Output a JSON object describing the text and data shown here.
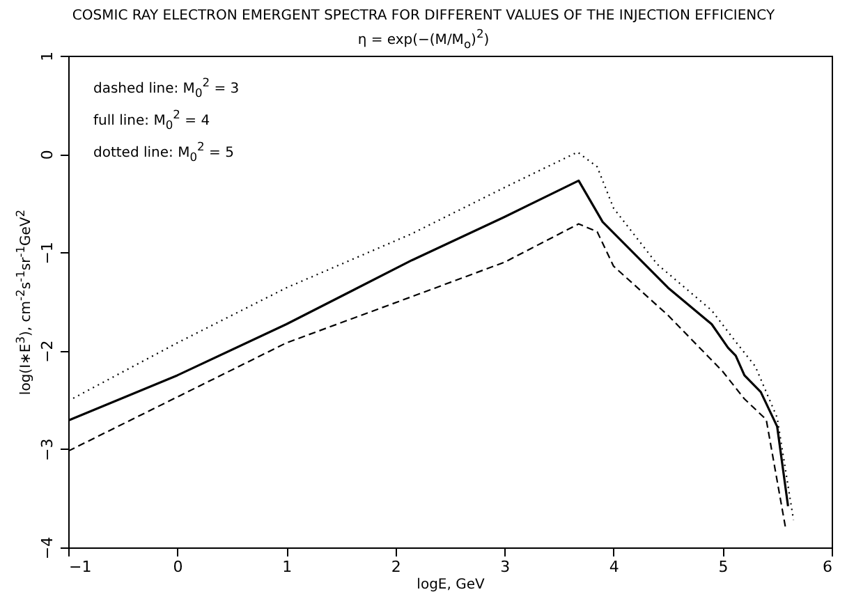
{
  "chart_data": {
    "type": "line",
    "title": "COSMIC RAY ELECTRON EMERGENT SPECTRA FOR DIFFERENT VALUES OF THE INJECTION EFFICIENCY",
    "subtitle": "η = exp(−(M/M$_{o}$)$^{2}$)",
    "xlabel": "logE, GeV",
    "ylabel": "log(I∗E$^{3}$), cm$^{-2}$s$^{-1}$sr$^{-1}$GeV$^{2}$",
    "annotations": [
      "dashed line: M$_{0}$$^{2}$ = 3",
      "full line: M$_{0}$$^{2}$ = 4",
      "dotted line: M$_{0}$$^{2}$ = 5"
    ],
    "xlim": [
      -1,
      6
    ],
    "xticks": [
      -1,
      0,
      1,
      2,
      3,
      4,
      5,
      6
    ],
    "ylim": [
      -4,
      1
    ],
    "yticks": [
      -4,
      -3,
      -2,
      -1,
      0,
      1
    ],
    "grid": false,
    "series": [
      {
        "color": "#000000",
        "line_style": "dashed",
        "x": [
          -1,
          0,
          1,
          2.15,
          3,
          3.68,
          3.85,
          4.0,
          4.5,
          5.0,
          5.2,
          5.4,
          5.58
        ],
        "values": [
          -3.02,
          -2.47,
          -1.92,
          -1.45,
          -1.1,
          -0.71,
          -0.79,
          -1.14,
          -1.64,
          -2.21,
          -2.49,
          -2.7,
          -3.82
        ]
      },
      {
        "color": "#000000",
        "line_style": "solid",
        "x": [
          -1,
          0,
          1,
          2.15,
          3,
          3.68,
          3.9,
          4.5,
          4.9,
          5.05,
          5.12,
          5.2,
          5.35,
          5.5,
          5.6
        ],
        "values": [
          -2.71,
          -2.25,
          -1.73,
          -1.08,
          -0.64,
          -0.27,
          -0.69,
          -1.36,
          -1.73,
          -1.97,
          -2.05,
          -2.25,
          -2.42,
          -2.77,
          -3.58
        ]
      },
      {
        "color": "#000000",
        "line_style": "dotted",
        "x": [
          -1,
          0,
          1,
          2.15,
          3,
          3.67,
          3.85,
          4.0,
          4.4,
          4.9,
          5.1,
          5.3,
          5.5,
          5.65
        ],
        "values": [
          -2.51,
          -1.92,
          -1.36,
          -0.81,
          -0.34,
          0.02,
          -0.13,
          -0.55,
          -1.12,
          -1.59,
          -1.88,
          -2.16,
          -2.68,
          -3.72
        ]
      }
    ]
  }
}
